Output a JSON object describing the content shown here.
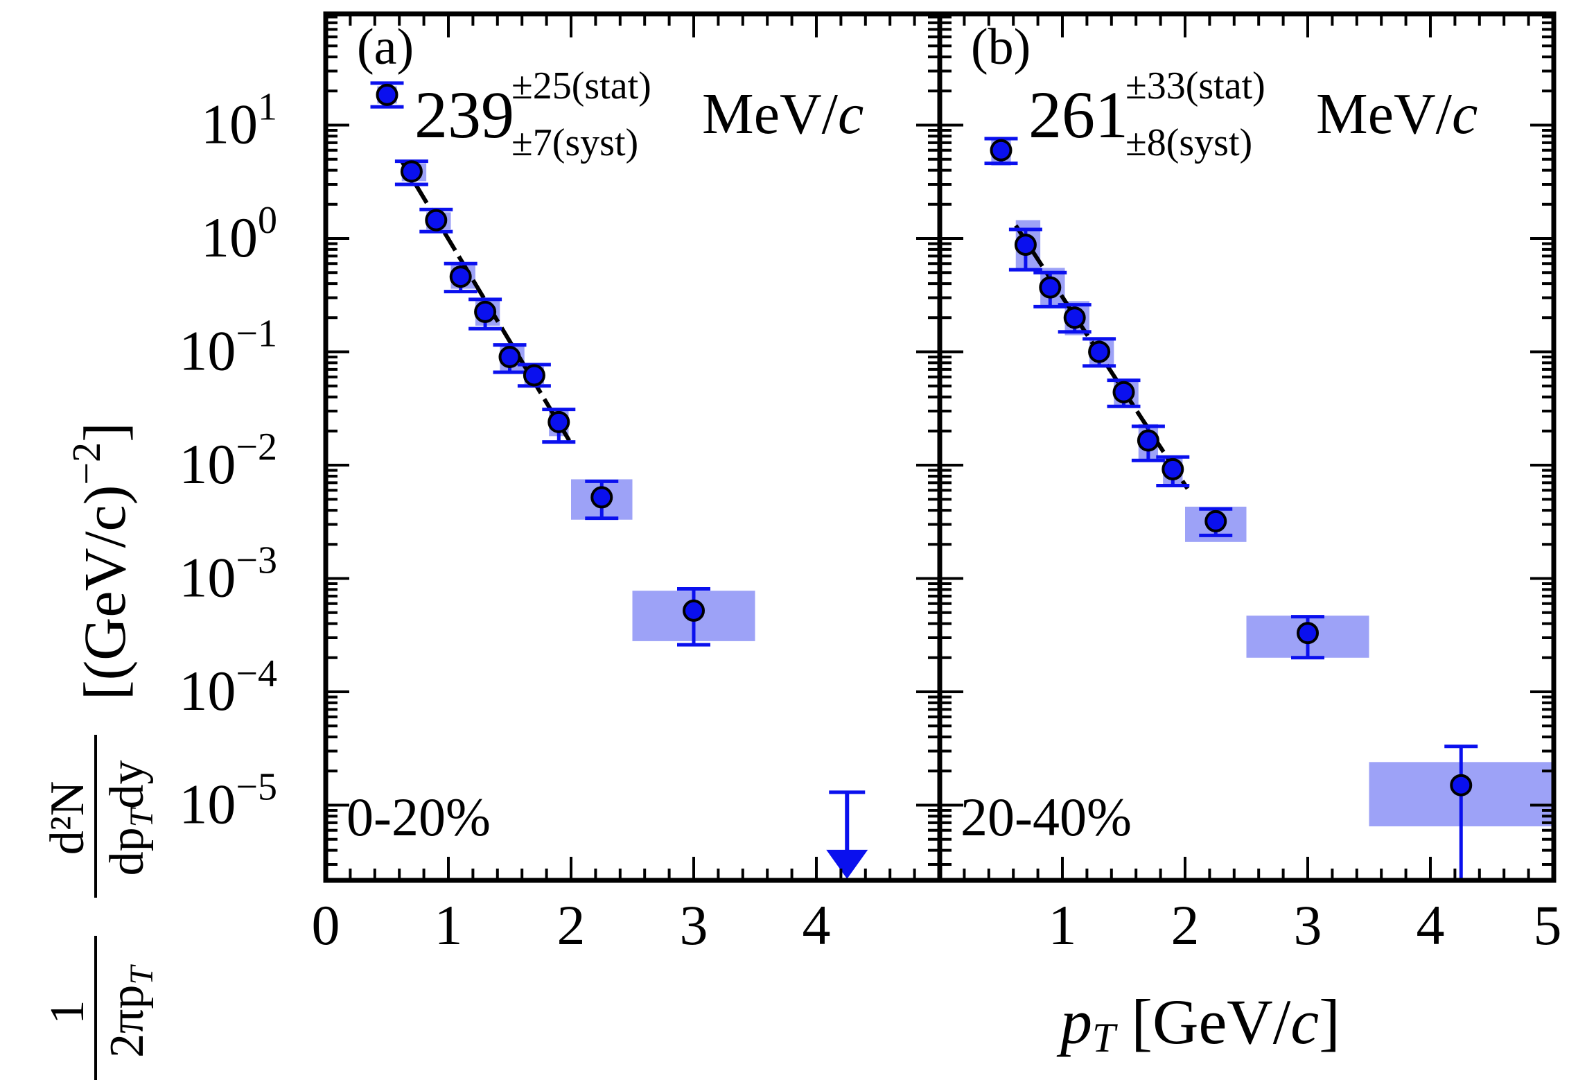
{
  "chart_data": [
    {
      "type": "scatter",
      "panel": "(a)",
      "centrality": "0-20%",
      "temperature": {
        "value": "239",
        "stat": "±25(stat)",
        "syst": "±7(syst)",
        "unit_main": "MeV/",
        "unit_c": "c"
      },
      "xlim": [
        0,
        5
      ],
      "ylim_log10": [
        -5.7,
        1.9
      ],
      "x_ticks": [
        "0",
        "1",
        "2",
        "3",
        "4"
      ],
      "first_point_legend": true,
      "points": [
        {
          "x": 0.7,
          "y": 3.9,
          "stat_lo": 3.0,
          "stat_hi": 4.8,
          "sys_lo": 3.2,
          "sys_hi": 4.6,
          "bin": [
            0.62,
            0.82
          ]
        },
        {
          "x": 0.9,
          "y": 1.45,
          "stat_lo": 1.15,
          "stat_hi": 1.8,
          "sys_lo": 1.2,
          "sys_hi": 1.7,
          "bin": [
            0.82,
            1.02
          ]
        },
        {
          "x": 1.1,
          "y": 0.46,
          "stat_lo": 0.34,
          "stat_hi": 0.6,
          "sys_lo": 0.36,
          "sys_hi": 0.58,
          "bin": [
            1.02,
            1.22
          ]
        },
        {
          "x": 1.3,
          "y": 0.225,
          "stat_lo": 0.16,
          "stat_hi": 0.29,
          "sys_lo": 0.17,
          "sys_hi": 0.28,
          "bin": [
            1.22,
            1.42
          ]
        },
        {
          "x": 1.5,
          "y": 0.09,
          "stat_lo": 0.066,
          "stat_hi": 0.115,
          "sys_lo": 0.068,
          "sys_hi": 0.112,
          "bin": [
            1.42,
            1.62
          ]
        },
        {
          "x": 1.7,
          "y": 0.062,
          "stat_lo": 0.05,
          "stat_hi": 0.077,
          "sys_lo": 0.052,
          "sys_hi": 0.074,
          "bin": [
            1.62,
            1.78
          ]
        },
        {
          "x": 1.9,
          "y": 0.024,
          "stat_lo": 0.016,
          "stat_hi": 0.031,
          "sys_lo": 0.018,
          "sys_hi": 0.03,
          "bin": [
            1.82,
            1.98
          ]
        },
        {
          "x": 2.25,
          "y": 0.0052,
          "stat_lo": 0.0034,
          "stat_hi": 0.0072,
          "sys_lo": 0.0033,
          "sys_hi": 0.0075,
          "bin": [
            2.0,
            2.5
          ]
        },
        {
          "x": 3.0,
          "y": 0.00052,
          "stat_lo": 0.00026,
          "stat_hi": 0.00081,
          "sys_lo": 0.00028,
          "sys_hi": 0.00078,
          "bin": [
            2.5,
            3.5
          ]
        }
      ],
      "legend_point": {
        "x": 0.5,
        "y": 18.5,
        "stat_lo": 14.5,
        "stat_hi": 23.5,
        "sys_lo": 15.5,
        "sys_hi": 22.0,
        "bin": [
          0.42,
          0.58
        ]
      },
      "upper_limit": {
        "x": 4.25,
        "y_top": 1.3e-05,
        "y_bottom": 2.3e-06
      },
      "fit": {
        "x_start": 0.62,
        "x_end": 2.0,
        "y_start": 4.8,
        "y_end": 0.0155
      }
    },
    {
      "type": "scatter",
      "panel": "(b)",
      "centrality": "20-40%",
      "temperature": {
        "value": "261",
        "stat": "±33(stat)",
        "syst": "±8(syst)",
        "unit_main": "MeV/",
        "unit_c": "c"
      },
      "xlim": [
        0,
        5
      ],
      "ylim_log10": [
        -5.7,
        1.9
      ],
      "x_ticks": [
        "1",
        "2",
        "3",
        "4",
        "5"
      ],
      "first_point_legend": false,
      "points": [
        {
          "x": 0.5,
          "y": 6.0,
          "stat_lo": 4.6,
          "stat_hi": 7.6,
          "sys_lo": 4.4,
          "sys_hi": 7.8,
          "bin": [
            0.42,
            0.58
          ]
        },
        {
          "x": 0.7,
          "y": 0.88,
          "stat_lo": 0.53,
          "stat_hi": 1.2,
          "sys_lo": 0.53,
          "sys_hi": 1.45,
          "bin": [
            0.62,
            0.82
          ]
        },
        {
          "x": 0.9,
          "y": 0.37,
          "stat_lo": 0.25,
          "stat_hi": 0.5,
          "sys_lo": 0.25,
          "sys_hi": 0.55,
          "bin": [
            0.82,
            1.02
          ]
        },
        {
          "x": 1.1,
          "y": 0.2,
          "stat_lo": 0.15,
          "stat_hi": 0.26,
          "sys_lo": 0.14,
          "sys_hi": 0.28,
          "bin": [
            1.02,
            1.22
          ]
        },
        {
          "x": 1.3,
          "y": 0.1,
          "stat_lo": 0.075,
          "stat_hi": 0.13,
          "sys_lo": 0.074,
          "sys_hi": 0.135,
          "bin": [
            1.22,
            1.42
          ]
        },
        {
          "x": 1.5,
          "y": 0.044,
          "stat_lo": 0.033,
          "stat_hi": 0.056,
          "sys_lo": 0.033,
          "sys_hi": 0.058,
          "bin": [
            1.42,
            1.62
          ]
        },
        {
          "x": 1.7,
          "y": 0.0165,
          "stat_lo": 0.011,
          "stat_hi": 0.022,
          "sys_lo": 0.011,
          "sys_hi": 0.023,
          "bin": [
            1.62,
            1.78
          ]
        },
        {
          "x": 1.9,
          "y": 0.0092,
          "stat_lo": 0.0066,
          "stat_hi": 0.0118,
          "sys_lo": 0.0066,
          "sys_hi": 0.012,
          "bin": [
            1.82,
            1.98
          ]
        },
        {
          "x": 2.25,
          "y": 0.0032,
          "stat_lo": 0.0024,
          "stat_hi": 0.0041,
          "sys_lo": 0.0021,
          "sys_hi": 0.0043,
          "bin": [
            2.0,
            2.5
          ]
        },
        {
          "x": 3.0,
          "y": 0.00033,
          "stat_lo": 0.0002,
          "stat_hi": 0.00046,
          "sys_lo": 0.0002,
          "sys_hi": 0.00047,
          "bin": [
            2.5,
            3.5
          ]
        },
        {
          "x": 4.25,
          "y": 1.5e-05,
          "stat_lo": 1.3e-06,
          "stat_hi": 3.3e-05,
          "sys_lo": 6.5e-06,
          "sys_hi": 2.4e-05,
          "bin": [
            3.5,
            5.0
          ]
        }
      ],
      "fit": {
        "x_start": 0.62,
        "x_end": 2.02,
        "y_start": 1.3,
        "y_end": 0.0062
      }
    }
  ],
  "y_tick_labels": [
    {
      "base": "10",
      "exp": "1",
      "log": 1
    },
    {
      "base": "10",
      "exp": "0",
      "log": 0
    },
    {
      "base": "10",
      "exp": "−1",
      "log": -1
    },
    {
      "base": "10",
      "exp": "−2",
      "log": -2
    },
    {
      "base": "10",
      "exp": "−3",
      "log": -3
    },
    {
      "base": "10",
      "exp": "−4",
      "log": -4
    },
    {
      "base": "10",
      "exp": "−5",
      "log": -5
    }
  ],
  "x_axis": {
    "p": "p",
    "sub": "T",
    "rest": " [GeV/",
    "c": "c",
    "close": "]"
  },
  "y_axis": {
    "frac1_num": "1",
    "frac1_den": "2πp",
    "frac1_den_sub": "T",
    "frac2_num": "d²N",
    "frac2_den": "dp",
    "frac2_den_sub": "T",
    "frac2_den_tail": "dy",
    "units": "[(GeV/c)",
    "units_exp": "−2",
    "units_close": "]"
  },
  "colors": {
    "marker": "#0a10ee",
    "error": "#0a10ee",
    "syst_box": "#9da2f7",
    "axis": "#000000",
    "fit": "#000000"
  }
}
